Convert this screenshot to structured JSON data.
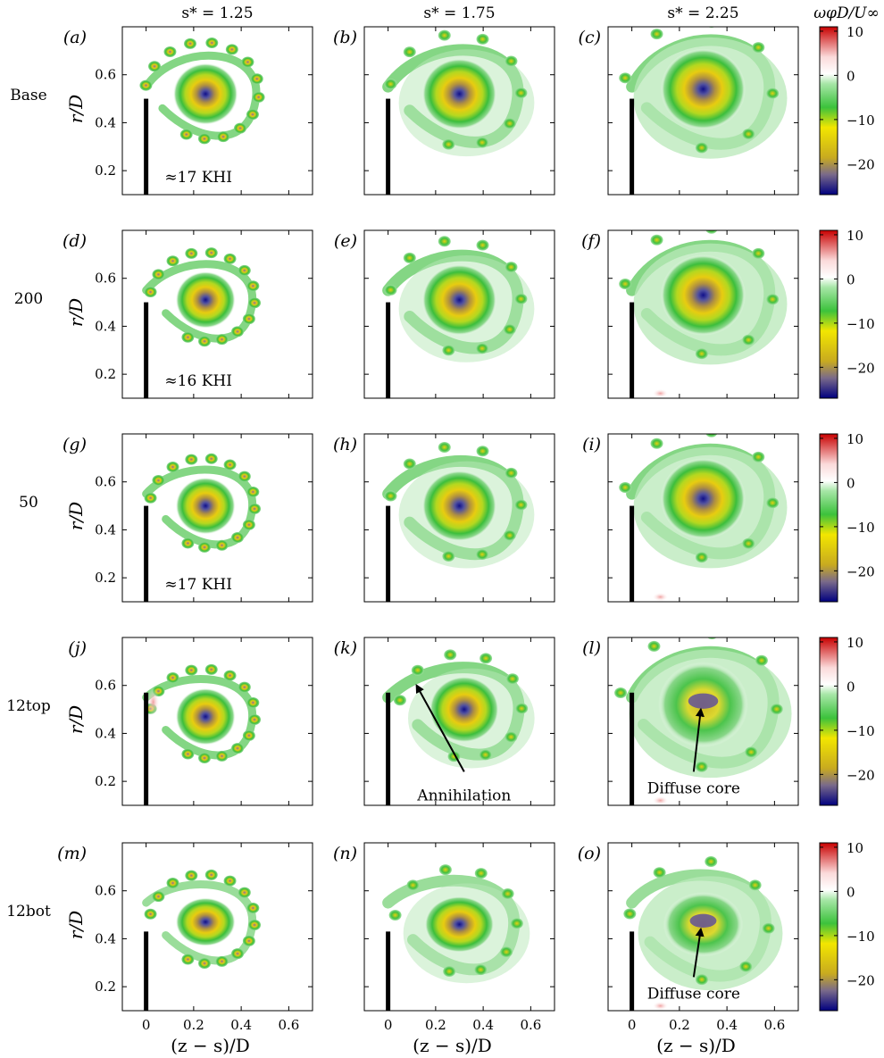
{
  "chart_data": {
    "type": "heatmap",
    "columns": [
      {
        "label": "s* = 1.25"
      },
      {
        "label": "s* = 1.75"
      },
      {
        "label": "s* = 2.25"
      }
    ],
    "rows": [
      {
        "label": "Base",
        "panels": [
          "(a)",
          "(b)",
          "(c)"
        ]
      },
      {
        "label": "200",
        "panels": [
          "(d)",
          "(e)",
          "(f)"
        ]
      },
      {
        "label": "50",
        "panels": [
          "(g)",
          "(h)",
          "(i)"
        ]
      },
      {
        "label": "12top",
        "panels": [
          "(j)",
          "(k)",
          "(l)"
        ]
      },
      {
        "label": "12bot",
        "panels": [
          "(m)",
          "(n)",
          "(o)"
        ]
      }
    ],
    "xlabel": "(z − s)/D",
    "ylabel": "r/D",
    "x_ticks": [
      0,
      0.2,
      0.4,
      0.6
    ],
    "x_tick_labels": [
      "0",
      "0.2",
      "0.4",
      "0.6"
    ],
    "y_ticks": [
      0.2,
      0.4,
      0.6
    ],
    "y_tick_labels": [
      "0.2",
      "0.4",
      "0.6"
    ],
    "xlim": [
      -0.1,
      0.7
    ],
    "ylim": [
      0.1,
      0.8
    ],
    "colorbar": {
      "title": "ωφD/U∞",
      "range": [
        -27,
        11
      ],
      "ticks": [
        10,
        0,
        -10,
        -20
      ],
      "tick_labels": [
        "10",
        "0",
        "−10",
        "−20"
      ],
      "colors": [
        "#00007f",
        "#d2b000",
        "#f2e600",
        "#14b414",
        "#ffffff",
        "#cc0000"
      ]
    },
    "annotations": [
      {
        "panel": "(a)",
        "text": "≈17 KHI"
      },
      {
        "panel": "(d)",
        "text": "≈16 KHI"
      },
      {
        "panel": "(g)",
        "text": "≈17 KHI"
      },
      {
        "panel": "(k)",
        "text": "Annihilation"
      },
      {
        "panel": "(l)",
        "text": "Diffuse core"
      },
      {
        "panel": "(o)",
        "text": "Diffuse core"
      }
    ]
  }
}
